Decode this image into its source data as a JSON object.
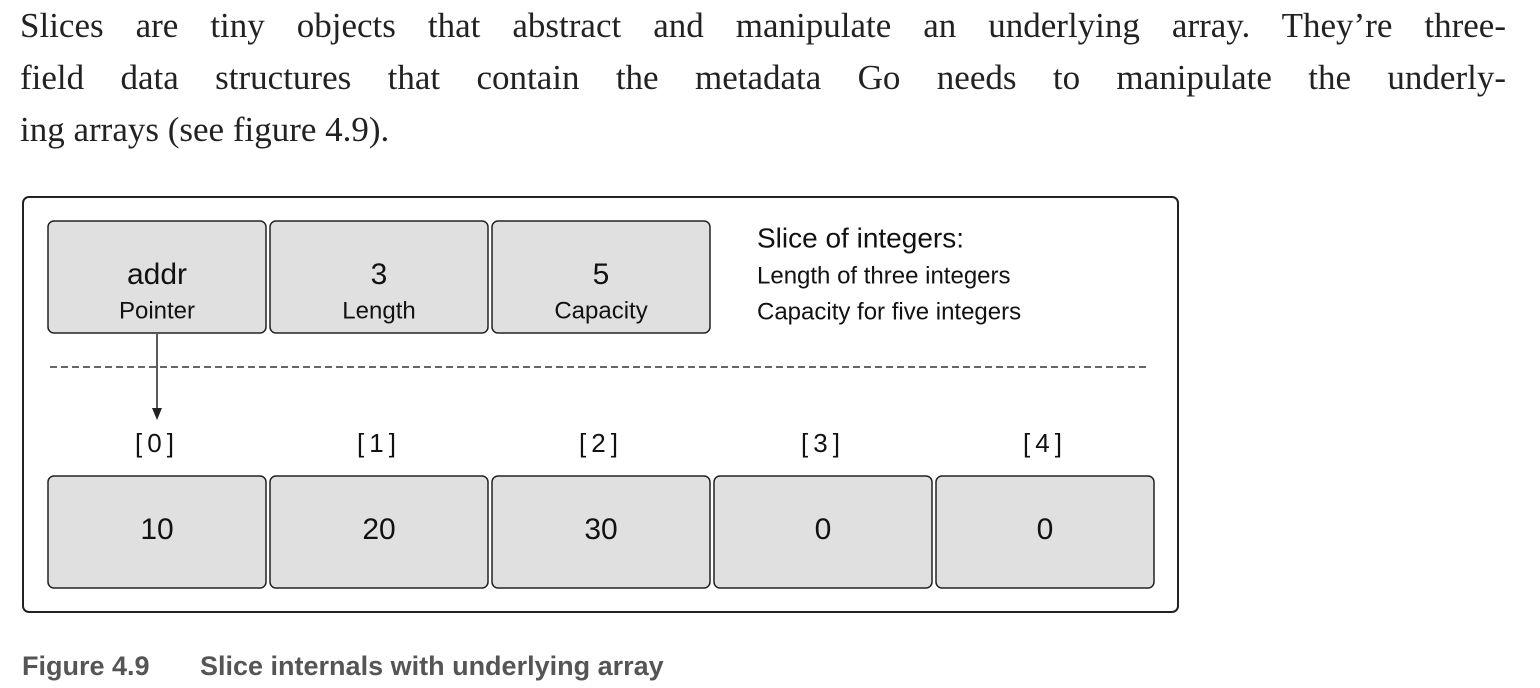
{
  "paragraph": {
    "lines": [
      "Slices are tiny objects that abstract and manipulate an underlying array. They’re three-",
      "field data structures that contain the metadata Go needs to manipulate the underly-",
      "ing arrays (see figure 4.9)."
    ]
  },
  "figure": {
    "slice_fields": [
      {
        "value": "addr",
        "label": "Pointer"
      },
      {
        "value": 3,
        "label": "Length"
      },
      {
        "value": 5,
        "label": "Capacity"
      }
    ],
    "description": {
      "title": "Slice of integers:",
      "lines": [
        "Length of three integers",
        "Capacity for five integers"
      ]
    },
    "array": {
      "indices": [
        "[0]",
        "[1]",
        "[2]",
        "[3]",
        "[4]"
      ],
      "values": [
        10,
        20,
        30,
        0,
        0
      ]
    },
    "caption": {
      "number": "Figure 4.9",
      "text": "Slice internals with underlying array"
    }
  }
}
